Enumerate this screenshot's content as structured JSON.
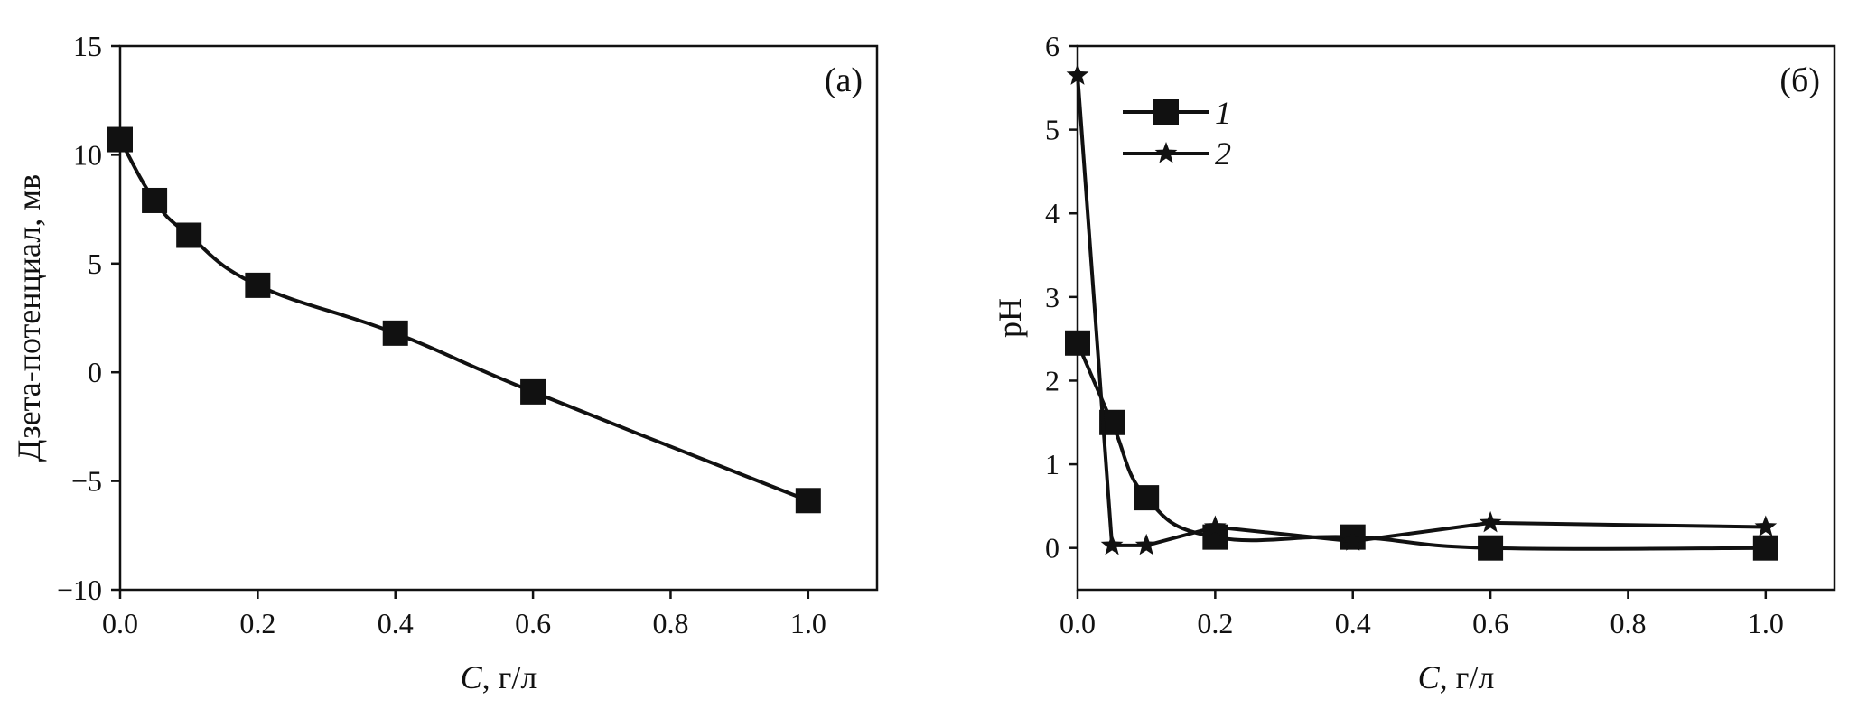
{
  "chart_data": [
    {
      "type": "line",
      "panel_label": "(а)",
      "xlabel_var": "C",
      "xlabel_unit": ", г/л",
      "ylabel": "Дзета-потенциал, мв",
      "xlim": [
        0,
        1.1
      ],
      "ylim": [
        -10,
        15
      ],
      "x_ticks": [
        "0.0",
        "0.2",
        "0.4",
        "0.6",
        "0.8",
        "1.0"
      ],
      "y_ticks": [
        "−10",
        "−5",
        "0",
        "5",
        "10",
        "15"
      ],
      "grid": false,
      "series": [
        {
          "marker": "square",
          "x": [
            0.0,
            0.05,
            0.1,
            0.2,
            0.4,
            0.6,
            1.0
          ],
          "y": [
            10.7,
            7.9,
            6.3,
            4.0,
            1.8,
            -0.9,
            -5.9
          ]
        }
      ]
    },
    {
      "type": "line",
      "panel_label": "(б)",
      "xlabel_var": "C",
      "xlabel_unit": ", г/л",
      "ylabel": "pH",
      "xlim": [
        0,
        1.1
      ],
      "ylim": [
        -0.5,
        6
      ],
      "x_ticks": [
        "0.0",
        "0.2",
        "0.4",
        "0.6",
        "0.8",
        "1.0"
      ],
      "y_ticks": [
        "0",
        "1",
        "2",
        "3",
        "4",
        "5",
        "6"
      ],
      "grid": false,
      "legend_position": "top-left",
      "series": [
        {
          "name": "1",
          "marker": "square",
          "x": [
            0.0,
            0.05,
            0.1,
            0.2,
            0.4,
            0.6,
            1.0
          ],
          "y": [
            2.45,
            1.5,
            0.6,
            0.13,
            0.13,
            0.0,
            0.0
          ]
        },
        {
          "name": "2",
          "marker": "star",
          "x": [
            0.0,
            0.05,
            0.1,
            0.2,
            0.4,
            0.6,
            1.0
          ],
          "y": [
            5.65,
            0.03,
            0.03,
            0.25,
            0.08,
            0.3,
            0.25
          ]
        }
      ]
    }
  ]
}
